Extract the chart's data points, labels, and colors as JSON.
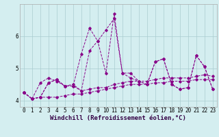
{
  "xlabel": "Windchill (Refroidissement éolien,°C)",
  "background_color": "#d4eef0",
  "line_color": "#880088",
  "grid_color": "#aaccd0",
  "x_values": [
    0,
    1,
    2,
    3,
    4,
    5,
    6,
    7,
    8,
    9,
    10,
    11,
    12,
    13,
    14,
    15,
    16,
    17,
    18,
    19,
    20,
    21,
    22,
    23
  ],
  "series": [
    [
      4.25,
      4.05,
      4.1,
      4.1,
      4.1,
      4.15,
      4.2,
      4.2,
      4.25,
      4.3,
      4.35,
      4.4,
      4.45,
      4.5,
      4.5,
      4.5,
      4.55,
      4.55,
      4.6,
      4.6,
      4.6,
      4.65,
      4.65,
      4.65
    ],
    [
      4.25,
      4.05,
      4.1,
      4.55,
      4.65,
      4.45,
      4.45,
      4.3,
      4.35,
      4.4,
      4.4,
      4.5,
      4.55,
      4.6,
      4.6,
      4.6,
      4.65,
      4.7,
      4.7,
      4.7,
      4.7,
      4.75,
      4.8,
      4.75
    ],
    [
      4.25,
      4.05,
      4.55,
      4.7,
      4.6,
      4.45,
      4.5,
      4.3,
      5.55,
      5.85,
      6.2,
      6.55,
      4.85,
      4.7,
      4.6,
      4.5,
      5.2,
      5.3,
      4.5,
      4.35,
      4.4,
      5.4,
      5.05,
      4.35
    ],
    [
      4.25,
      4.05,
      4.1,
      4.55,
      4.65,
      4.45,
      4.45,
      5.45,
      6.25,
      5.85,
      4.85,
      6.7,
      4.85,
      4.85,
      4.6,
      4.5,
      5.2,
      5.3,
      4.5,
      4.35,
      4.4,
      5.4,
      5.05,
      4.35
    ]
  ],
  "ylim": [
    3.8,
    7.0
  ],
  "yticks": [
    4,
    5,
    6
  ],
  "xticks": [
    0,
    1,
    2,
    3,
    4,
    5,
    6,
    7,
    8,
    9,
    10,
    11,
    12,
    13,
    14,
    15,
    16,
    17,
    18,
    19,
    20,
    21,
    22,
    23
  ],
  "tick_fontsize": 5.5,
  "xlabel_fontsize": 6.5
}
